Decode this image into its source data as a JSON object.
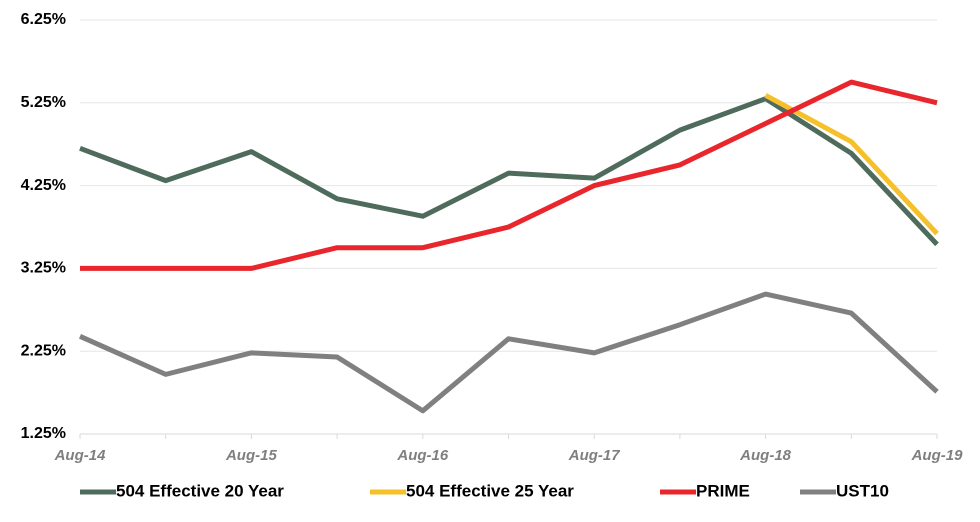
{
  "chart_data": {
    "type": "line",
    "categories": [
      "Aug-14",
      null,
      "Aug-15",
      null,
      "Aug-16",
      null,
      "Aug-17",
      null,
      "Aug-18",
      null,
      "Aug-19"
    ],
    "series": [
      {
        "name": "504 Effective 20 Year",
        "color": "#4e6b5c",
        "values": [
          4.7,
          4.31,
          4.66,
          4.09,
          3.88,
          4.4,
          4.34,
          4.92,
          5.3,
          4.64,
          3.54
        ]
      },
      {
        "name": "504 Effective 25 Year",
        "color": "#f5c02a",
        "values": [
          null,
          null,
          null,
          null,
          null,
          null,
          null,
          null,
          5.34,
          4.78,
          3.67
        ]
      },
      {
        "name": "PRIME",
        "color": "#e8262b",
        "values": [
          3.25,
          3.25,
          3.25,
          3.5,
          3.5,
          3.75,
          4.25,
          4.5,
          5.0,
          5.5,
          5.25
        ]
      },
      {
        "name": "UST10",
        "color": "#808080",
        "values": [
          2.43,
          1.97,
          2.23,
          2.18,
          1.53,
          2.4,
          2.23,
          2.57,
          2.94,
          2.71,
          1.76
        ]
      }
    ],
    "ylim": [
      1.25,
      6.25
    ],
    "yticks": [
      {
        "value": 1.25,
        "label": "1.25%"
      },
      {
        "value": 2.25,
        "label": "2.25%"
      },
      {
        "value": 3.25,
        "label": "3.25%"
      },
      {
        "value": 4.25,
        "label": "4.25%"
      },
      {
        "value": 5.25,
        "label": "5.25%"
      },
      {
        "value": 6.25,
        "label": "6.25%"
      }
    ],
    "grid": true,
    "legend": "bottom"
  }
}
